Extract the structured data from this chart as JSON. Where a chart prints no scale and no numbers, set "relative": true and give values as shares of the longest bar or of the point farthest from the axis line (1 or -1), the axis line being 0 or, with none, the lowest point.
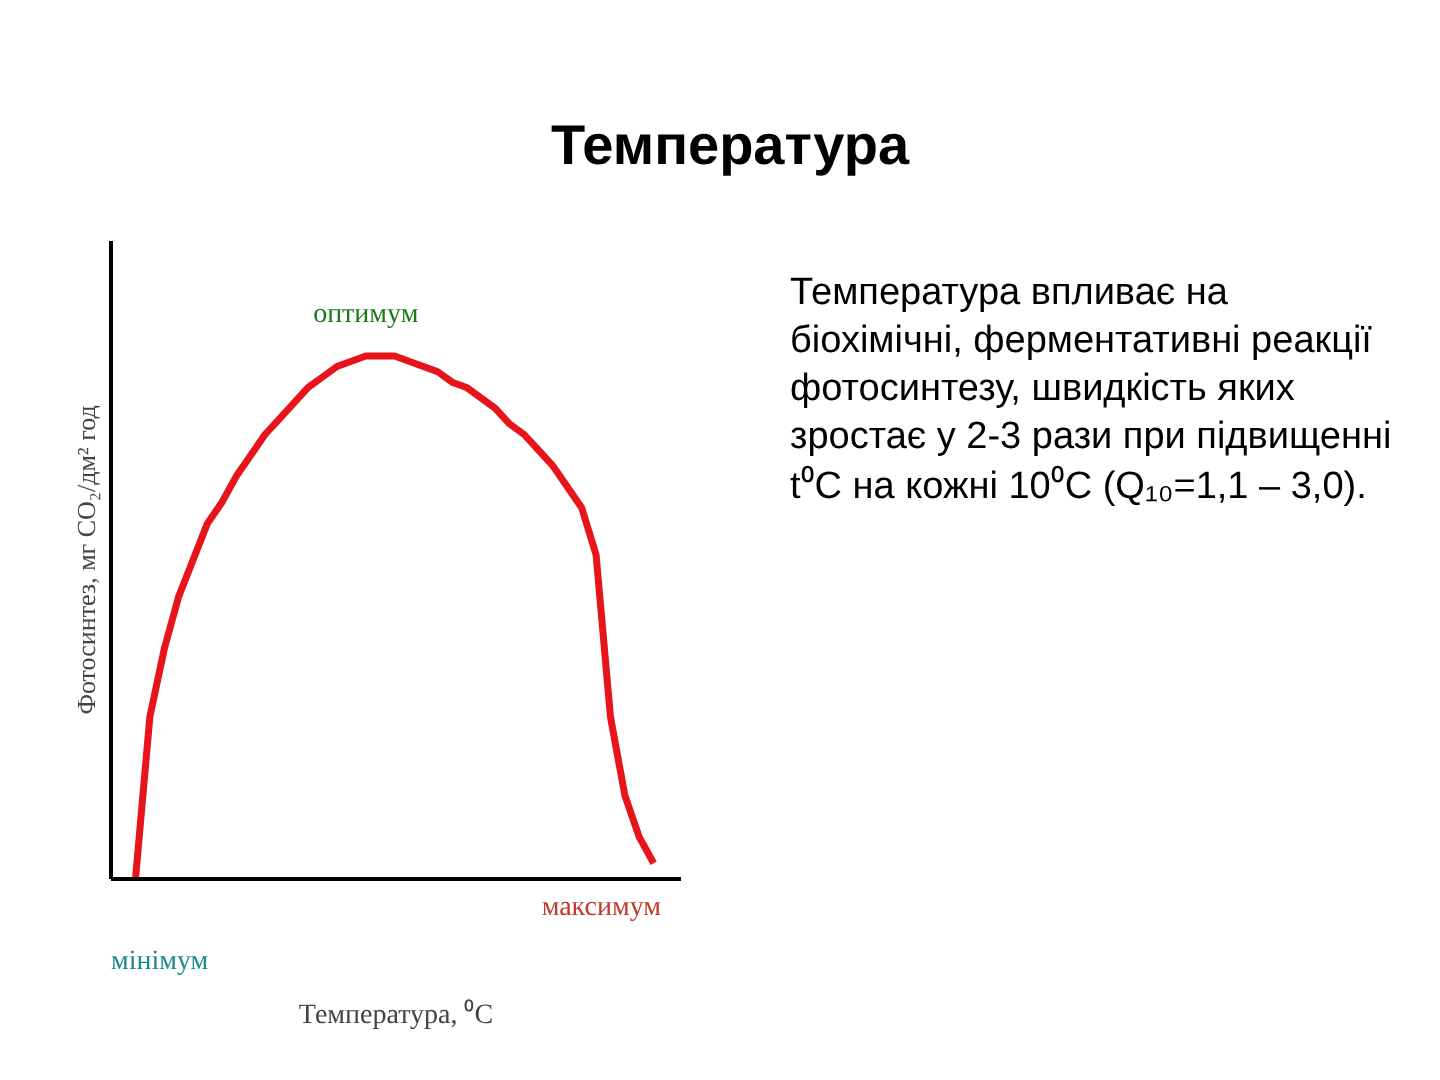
{
  "chart_data": {
    "type": "line",
    "title": "Температура",
    "xlabel": "Температура, ⁰С",
    "ylabel": "Фотосинтез, мг CO₂/дм² год",
    "relative": true,
    "categories": [
      null,
      null,
      null,
      null,
      null,
      null,
      null,
      null,
      null,
      null,
      null,
      null,
      null,
      null,
      null,
      null,
      null,
      null,
      null,
      null,
      null,
      null,
      null,
      null,
      null,
      null,
      null,
      null,
      null,
      null,
      null,
      null,
      null,
      null,
      null,
      null,
      null
    ],
    "series": [
      {
        "color": "#e8141c",
        "values": [
          0,
          0.31,
          0.44,
          0.54,
          0.61,
          0.68,
          0.72,
          0.77,
          0.81,
          0.85,
          0.88,
          0.91,
          0.94,
          0.96,
          0.98,
          0.99,
          1,
          1,
          1,
          0.99,
          0.98,
          0.97,
          0.95,
          0.94,
          0.92,
          0.9,
          0.87,
          0.85,
          0.82,
          0.79,
          0.75,
          0.71,
          0.62,
          0.31,
          0.16,
          0.08,
          0.03
        ]
      }
    ],
    "annotations": [
      "оптимум",
      "мінімум",
      "максимум",
      "Температура впливає на біохімічні, ферментативні реакції фотосинтезу, швидкість яких зростає у 2-3 рази при підвищенні t⁰C на кожні 10⁰C (Q₁₀=1,1 – 3,0)."
    ],
    "grid": false,
    "marker": "none",
    "line_style": "solid"
  }
}
